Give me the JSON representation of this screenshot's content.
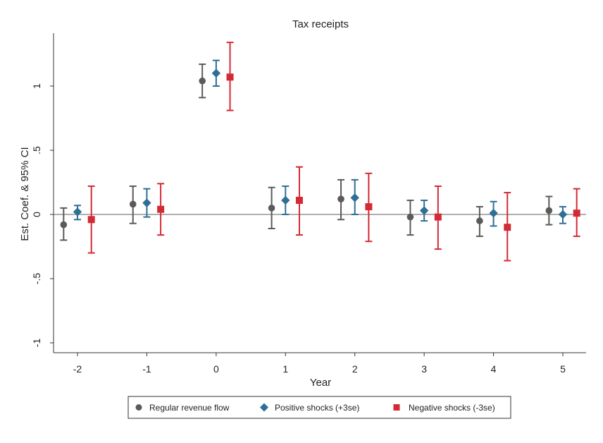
{
  "chart_data": {
    "type": "scatter",
    "title": "Tax receipts",
    "xlabel": "Year",
    "ylabel": "Est. Coef. & 95% CI",
    "xlim": [
      -2.35,
      5.35
    ],
    "ylim": [
      -1.05,
      1.42
    ],
    "categories": [
      "-2",
      "-1",
      "0",
      "1",
      "2",
      "3",
      "4",
      "5"
    ],
    "x_ticks": [
      -2,
      -1,
      0,
      1,
      2,
      3,
      4,
      5
    ],
    "y_ticks": [
      {
        "value": 1,
        "label": "1"
      },
      {
        "value": 0.5,
        "label": ".5"
      },
      {
        "value": 0,
        "label": "0"
      },
      {
        "value": -0.5,
        "label": "-.5"
      },
      {
        "value": -1,
        "label": "-1"
      }
    ],
    "reference_line": 0,
    "series": [
      {
        "name": "Regular revenue flow",
        "marker": "circle",
        "color": "#5a5a5a",
        "offset": -0.2,
        "points": [
          {
            "x": -2,
            "estimate": -0.08,
            "ci_low": -0.2,
            "ci_high": 0.05
          },
          {
            "x": -1,
            "estimate": 0.08,
            "ci_low": -0.07,
            "ci_high": 0.22
          },
          {
            "x": 0,
            "estimate": 1.04,
            "ci_low": 0.91,
            "ci_high": 1.17
          },
          {
            "x": 1,
            "estimate": 0.05,
            "ci_low": -0.11,
            "ci_high": 0.21
          },
          {
            "x": 2,
            "estimate": 0.12,
            "ci_low": -0.04,
            "ci_high": 0.27
          },
          {
            "x": 3,
            "estimate": -0.02,
            "ci_low": -0.16,
            "ci_high": 0.11
          },
          {
            "x": 4,
            "estimate": -0.05,
            "ci_low": -0.17,
            "ci_high": 0.06
          },
          {
            "x": 5,
            "estimate": 0.03,
            "ci_low": -0.08,
            "ci_high": 0.14
          }
        ]
      },
      {
        "name": "Positive shocks (+3se)",
        "marker": "diamond",
        "color": "#2e6f96",
        "offset": 0,
        "points": [
          {
            "x": -2,
            "estimate": 0.02,
            "ci_low": -0.04,
            "ci_high": 0.07
          },
          {
            "x": -1,
            "estimate": 0.09,
            "ci_low": -0.02,
            "ci_high": 0.2
          },
          {
            "x": 0,
            "estimate": 1.1,
            "ci_low": 1.0,
            "ci_high": 1.2
          },
          {
            "x": 1,
            "estimate": 0.11,
            "ci_low": 0.0,
            "ci_high": 0.22
          },
          {
            "x": 2,
            "estimate": 0.13,
            "ci_low": 0.0,
            "ci_high": 0.27
          },
          {
            "x": 3,
            "estimate": 0.03,
            "ci_low": -0.05,
            "ci_high": 0.11
          },
          {
            "x": 4,
            "estimate": 0.01,
            "ci_low": -0.09,
            "ci_high": 0.1
          },
          {
            "x": 5,
            "estimate": 0.0,
            "ci_low": -0.07,
            "ci_high": 0.06
          }
        ]
      },
      {
        "name": "Negative shocks (-3se)",
        "marker": "square",
        "color": "#d42a35",
        "offset": 0.2,
        "points": [
          {
            "x": -2,
            "estimate": -0.04,
            "ci_low": -0.3,
            "ci_high": 0.22
          },
          {
            "x": -1,
            "estimate": 0.04,
            "ci_low": -0.16,
            "ci_high": 0.24
          },
          {
            "x": 0,
            "estimate": 1.07,
            "ci_low": 0.81,
            "ci_high": 1.34
          },
          {
            "x": 1,
            "estimate": 0.11,
            "ci_low": -0.16,
            "ci_high": 0.37
          },
          {
            "x": 2,
            "estimate": 0.06,
            "ci_low": -0.21,
            "ci_high": 0.32
          },
          {
            "x": 3,
            "estimate": -0.02,
            "ci_low": -0.27,
            "ci_high": 0.22
          },
          {
            "x": 4,
            "estimate": -0.1,
            "ci_low": -0.36,
            "ci_high": 0.17
          },
          {
            "x": 5,
            "estimate": 0.01,
            "ci_low": -0.17,
            "ci_high": 0.2
          }
        ]
      }
    ],
    "legend": {
      "position": "bottom",
      "entries": [
        "Regular revenue flow",
        "Positive shocks (+3se)",
        "Negative shocks (-3se)"
      ]
    },
    "grid": false
  }
}
